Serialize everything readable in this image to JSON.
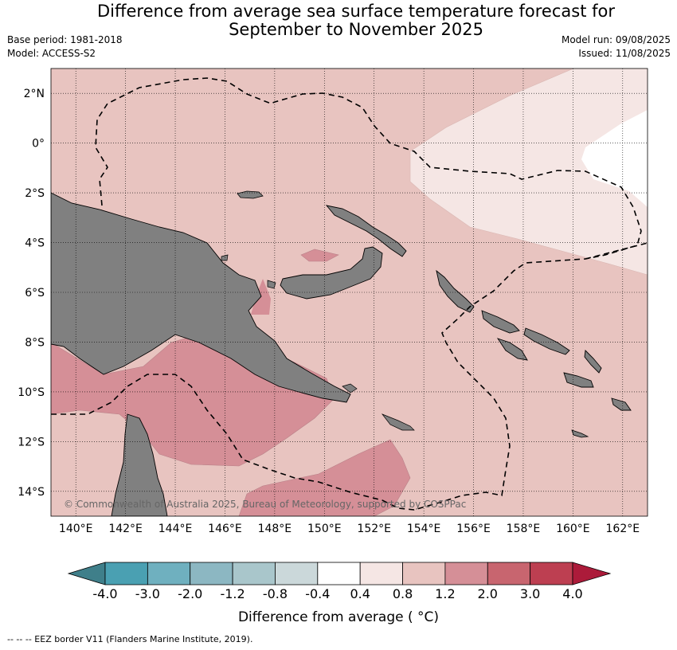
{
  "header": {
    "title_line1": "Difference from average sea surface temperature forecast for",
    "title_line2": "September to November 2025",
    "base_period": "Base period: 1981-2018",
    "model": "Model: ACCESS-S2",
    "model_run": "Model run: 09/08/2025",
    "issued": "Issued: 11/08/2025"
  },
  "map": {
    "lon_range": [
      139,
      163
    ],
    "lat_range": [
      -15,
      3
    ],
    "lat_ticks": [
      {
        "value": 2,
        "label": "2°N"
      },
      {
        "value": 0,
        "label": "0°"
      },
      {
        "value": -2,
        "label": "2°S"
      },
      {
        "value": -4,
        "label": "4°S"
      },
      {
        "value": -6,
        "label": "6°S"
      },
      {
        "value": -8,
        "label": "8°S"
      },
      {
        "value": -10,
        "label": "10°S"
      },
      {
        "value": -12,
        "label": "12°S"
      },
      {
        "value": -14,
        "label": "14°S"
      }
    ],
    "lon_ticks": [
      {
        "value": 140,
        "label": "140°E"
      },
      {
        "value": 142,
        "label": "142°E"
      },
      {
        "value": 144,
        "label": "144°E"
      },
      {
        "value": 146,
        "label": "146°E"
      },
      {
        "value": 148,
        "label": "148°E"
      },
      {
        "value": 150,
        "label": "150°E"
      },
      {
        "value": 152,
        "label": "152°E"
      },
      {
        "value": 154,
        "label": "154°E"
      },
      {
        "value": 156,
        "label": "156°E"
      },
      {
        "value": 158,
        "label": "158°E"
      },
      {
        "value": 160,
        "label": "160°E"
      },
      {
        "value": 162,
        "label": "162°E"
      }
    ],
    "copyright": "© Commonwealth of Australia 2025, Bureau of Meteorology, supported by COSPPac",
    "land_color": "#808080",
    "background_color": "#e8c4c0"
  },
  "colorbar": {
    "tick_labels": [
      "-4.0",
      "-3.0",
      "-2.0",
      "-1.2",
      "-0.8",
      "-0.4",
      "0.4",
      "0.8",
      "1.2",
      "2.0",
      "3.0",
      "4.0"
    ],
    "colors": [
      "#3f7f8a",
      "#4aa0b2",
      "#6fb0bf",
      "#8cb7c2",
      "#a9c6cb",
      "#cbd8da",
      "#ffffff",
      "#f5e6e4",
      "#e8c4c0",
      "#d58f97",
      "#c8656f",
      "#bd3f51",
      "#ac1b3a"
    ],
    "label": "Difference from average ( °C)"
  },
  "footnote": "--  --  -- EEZ border V11 (Flanders Marine Institute, 2019)."
}
